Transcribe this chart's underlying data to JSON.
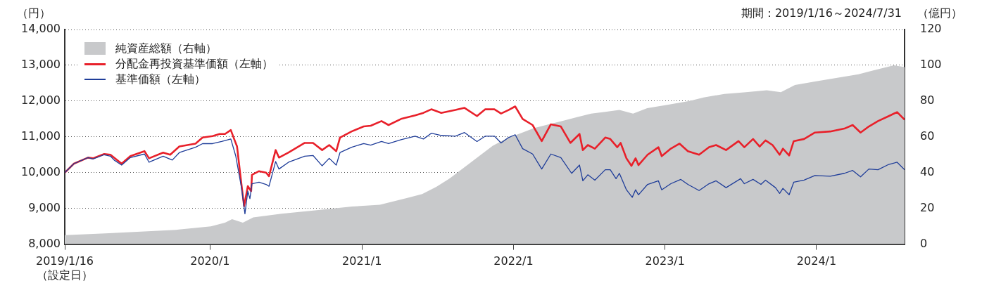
{
  "chart_data": {
    "type": "line",
    "ylabel": "（円）",
    "y2label": "（億円）",
    "annotations": [
      "期間：2019/1/16～2024/7/31"
    ],
    "legend": "top left",
    "grid": "y",
    "xlim": [
      "2019-01-16",
      "2024-07-31"
    ],
    "xticks": [
      {
        "value": "2019-01-16",
        "label": "2019/1/16\n（設定日）"
      },
      {
        "value": "2020-01-01",
        "label": "2020/1"
      },
      {
        "value": "2021-01-01",
        "label": "2021/1"
      },
      {
        "value": "2022-01-01",
        "label": "2022/1"
      },
      {
        "value": "2023-01-01",
        "label": "2023/1"
      },
      {
        "value": "2024-01-01",
        "label": "2024/1"
      }
    ],
    "ylim": [
      8000,
      14000
    ],
    "yticks": [
      {
        "value": 8000,
        "label": "8,000"
      },
      {
        "value": 9000,
        "label": "9,000"
      },
      {
        "value": 10000,
        "label": "10,000"
      },
      {
        "value": 11000,
        "label": "11,000"
      },
      {
        "value": 12000,
        "label": "12,000"
      },
      {
        "value": 13000,
        "label": "13,000"
      },
      {
        "value": 14000,
        "label": "14,000"
      }
    ],
    "y2lim": [
      0,
      120
    ],
    "y2ticks": [
      0,
      20,
      40,
      60,
      80,
      100,
      120
    ],
    "series": [
      {
        "name": "純資産総額（右軸）",
        "type": "area",
        "axis": "y2",
        "color": "#c8c9cb",
        "x": [
          "2019-01-16",
          "2019-04-24",
          "2019-07-18",
          "2019-10-11",
          "2020-01-03",
          "2020-02-06",
          "2020-02-23",
          "2020-03-20",
          "2020-04-14",
          "2020-06-21",
          "2020-09-14",
          "2020-12-08",
          "2021-02-13",
          "2021-03-19",
          "2021-04-22",
          "2021-05-26",
          "2021-06-29",
          "2021-08-02",
          "2021-09-05",
          "2021-10-09",
          "2021-11-12",
          "2021-12-15",
          "2022-01-18",
          "2022-02-21",
          "2022-03-27",
          "2022-04-30",
          "2022-06-03",
          "2022-07-07",
          "2022-08-10",
          "2022-09-13",
          "2022-10-16",
          "2022-11-19",
          "2023-01-09",
          "2023-03-01",
          "2023-04-04",
          "2023-05-24",
          "2023-07-15",
          "2023-09-03",
          "2023-10-07",
          "2023-11-10",
          "2023-12-31",
          "2024-02-20",
          "2024-04-11",
          "2024-05-15",
          "2024-07-05",
          "2024-07-31"
        ],
        "values": [
          5,
          6,
          7,
          8,
          10,
          12,
          14,
          12,
          15,
          17,
          19,
          21,
          22,
          24,
          26,
          28,
          32,
          37,
          43,
          49,
          55,
          59,
          62,
          65,
          67,
          69,
          71,
          73,
          74,
          75,
          73,
          76,
          78,
          80,
          82,
          84,
          85,
          86,
          85,
          89,
          91,
          93,
          95,
          97,
          100,
          99
        ]
      },
      {
        "name": "分配金再投資基準価額（左軸）",
        "color": "#e8202a",
        "x": [
          "2019-01-16",
          "2019-02-07",
          "2019-03-13",
          "2019-03-25",
          "2019-04-21",
          "2019-05-06",
          "2019-06-02",
          "2019-06-23",
          "2019-07-27",
          "2019-08-07",
          "2019-09-10",
          "2019-09-27",
          "2019-10-19",
          "2019-11-27",
          "2019-12-14",
          "2020-01-07",
          "2020-01-24",
          "2020-02-06",
          "2020-02-20",
          "2020-02-28",
          "2020-03-06",
          "2020-03-15",
          "2020-03-23",
          "2020-04-01",
          "2020-04-09",
          "2020-04-11",
          "2020-04-28",
          "2020-05-15",
          "2020-05-22",
          "2020-06-07",
          "2020-06-15",
          "2020-07-08",
          "2020-08-16",
          "2020-09-05",
          "2020-09-27",
          "2020-10-14",
          "2020-10-31",
          "2020-11-09",
          "2020-12-07",
          "2021-01-05",
          "2021-01-22",
          "2021-02-17",
          "2021-03-06",
          "2021-04-05",
          "2021-05-09",
          "2021-05-29",
          "2021-06-17",
          "2021-07-11",
          "2021-08-14",
          "2021-09-05",
          "2021-10-05",
          "2021-10-25",
          "2021-11-16",
          "2021-12-02",
          "2021-12-20",
          "2022-01-05",
          "2022-01-23",
          "2022-02-16",
          "2022-03-10",
          "2022-04-01",
          "2022-04-25",
          "2022-05-18",
          "2022-06-09",
          "2022-06-17",
          "2022-06-29",
          "2022-07-16",
          "2022-08-10",
          "2022-08-22",
          "2022-09-08",
          "2022-09-16",
          "2022-09-30",
          "2022-10-12",
          "2022-10-22",
          "2022-10-29",
          "2022-11-20",
          "2022-12-16",
          "2022-12-24",
          "2023-01-15",
          "2023-02-05",
          "2023-02-25",
          "2023-03-24",
          "2023-04-17",
          "2023-05-04",
          "2023-05-28",
          "2023-06-27",
          "2023-07-11",
          "2023-08-01",
          "2023-08-17",
          "2023-08-31",
          "2023-09-17",
          "2023-10-04",
          "2023-10-12",
          "2023-10-27",
          "2023-11-07",
          "2023-12-02",
          "2023-12-28",
          "2024-02-03",
          "2024-03-08",
          "2024-03-28",
          "2024-04-16",
          "2024-05-06",
          "2024-05-28",
          "2024-06-23",
          "2024-07-13",
          "2024-07-31"
        ],
        "values": [
          10000,
          10250,
          10420,
          10400,
          10520,
          10500,
          10250,
          10460,
          10600,
          10400,
          10560,
          10500,
          10730,
          10810,
          10980,
          11020,
          11080,
          11080,
          11190,
          10940,
          10730,
          9830,
          9060,
          9620,
          9480,
          9940,
          10040,
          10000,
          9900,
          10630,
          10420,
          10560,
          10830,
          10830,
          10630,
          10770,
          10600,
          10980,
          11150,
          11290,
          11310,
          11440,
          11330,
          11500,
          11600,
          11670,
          11770,
          11670,
          11750,
          11810,
          11580,
          11770,
          11770,
          11650,
          11750,
          11850,
          11500,
          11330,
          10880,
          11350,
          11290,
          10830,
          11080,
          10630,
          10770,
          10670,
          10980,
          10940,
          10710,
          10830,
          10400,
          10190,
          10400,
          10210,
          10500,
          10710,
          10460,
          10670,
          10810,
          10600,
          10500,
          10710,
          10770,
          10630,
          10880,
          10710,
          10940,
          10730,
          10900,
          10770,
          10500,
          10670,
          10480,
          10880,
          10940,
          11120,
          11150,
          11230,
          11330,
          11120,
          11290,
          11440,
          11580,
          11690,
          11480
        ]
      },
      {
        "name": "基準価額（左軸）",
        "color": "#1f3d99",
        "x": [
          "2019-01-16",
          "2019-02-07",
          "2019-03-13",
          "2019-03-25",
          "2019-04-21",
          "2019-05-06",
          "2019-05-15",
          "2019-06-02",
          "2019-06-23",
          "2019-07-27",
          "2019-08-07",
          "2019-09-10",
          "2019-10-02",
          "2019-10-19",
          "2019-11-27",
          "2019-12-14",
          "2020-01-07",
          "2020-01-29",
          "2020-02-20",
          "2020-03-03",
          "2020-03-17",
          "2020-03-25",
          "2020-04-01",
          "2020-04-06",
          "2020-04-11",
          "2020-04-28",
          "2020-05-15",
          "2020-05-22",
          "2020-06-07",
          "2020-06-15",
          "2020-07-08",
          "2020-08-16",
          "2020-09-05",
          "2020-09-27",
          "2020-10-14",
          "2020-10-31",
          "2020-11-09",
          "2020-12-07",
          "2021-01-05",
          "2021-01-22",
          "2021-02-17",
          "2021-03-06",
          "2021-04-05",
          "2021-05-09",
          "2021-05-29",
          "2021-06-17",
          "2021-07-11",
          "2021-08-14",
          "2021-09-05",
          "2021-10-05",
          "2021-10-25",
          "2021-11-16",
          "2021-12-02",
          "2021-12-20",
          "2022-01-05",
          "2022-01-23",
          "2022-02-16",
          "2022-03-10",
          "2022-04-01",
          "2022-04-25",
          "2022-05-21",
          "2022-06-09",
          "2022-06-17",
          "2022-06-29",
          "2022-07-16",
          "2022-08-10",
          "2022-08-22",
          "2022-09-05",
          "2022-09-13",
          "2022-09-30",
          "2022-10-14",
          "2022-10-22",
          "2022-10-29",
          "2022-11-20",
          "2022-12-16",
          "2022-12-24",
          "2023-01-15",
          "2023-02-08",
          "2023-02-25",
          "2023-03-24",
          "2023-04-17",
          "2023-05-04",
          "2023-05-28",
          "2023-07-02",
          "2023-07-11",
          "2023-08-01",
          "2023-08-20",
          "2023-08-31",
          "2023-09-24",
          "2023-10-04",
          "2023-10-12",
          "2023-10-27",
          "2023-11-07",
          "2023-12-02",
          "2023-12-28",
          "2024-02-03",
          "2024-03-08",
          "2024-03-28",
          "2024-04-16",
          "2024-05-06",
          "2024-05-28",
          "2024-06-23",
          "2024-07-13",
          "2024-07-31"
        ],
        "values": [
          10000,
          10250,
          10420,
          10380,
          10500,
          10460,
          10350,
          10210,
          10420,
          10520,
          10290,
          10460,
          10350,
          10560,
          10710,
          10810,
          10810,
          10870,
          10940,
          10460,
          9560,
          8850,
          9480,
          9270,
          9690,
          9730,
          9670,
          9620,
          10310,
          10100,
          10290,
          10460,
          10480,
          10190,
          10400,
          10210,
          10560,
          10710,
          10810,
          10770,
          10870,
          10810,
          10920,
          11020,
          10940,
          11100,
          11040,
          11020,
          11120,
          10870,
          11020,
          11020,
          10830,
          10980,
          11060,
          10670,
          10520,
          10100,
          10520,
          10420,
          9980,
          10210,
          9770,
          9940,
          9790,
          10080,
          10080,
          9830,
          9980,
          9520,
          9310,
          9520,
          9380,
          9670,
          9770,
          9520,
          9690,
          9810,
          9670,
          9500,
          9690,
          9770,
          9580,
          9830,
          9690,
          9810,
          9670,
          9790,
          9580,
          9420,
          9560,
          9380,
          9730,
          9790,
          9920,
          9900,
          9980,
          10060,
          9880,
          10100,
          10080,
          10230,
          10290,
          10080
        ]
      }
    ]
  }
}
